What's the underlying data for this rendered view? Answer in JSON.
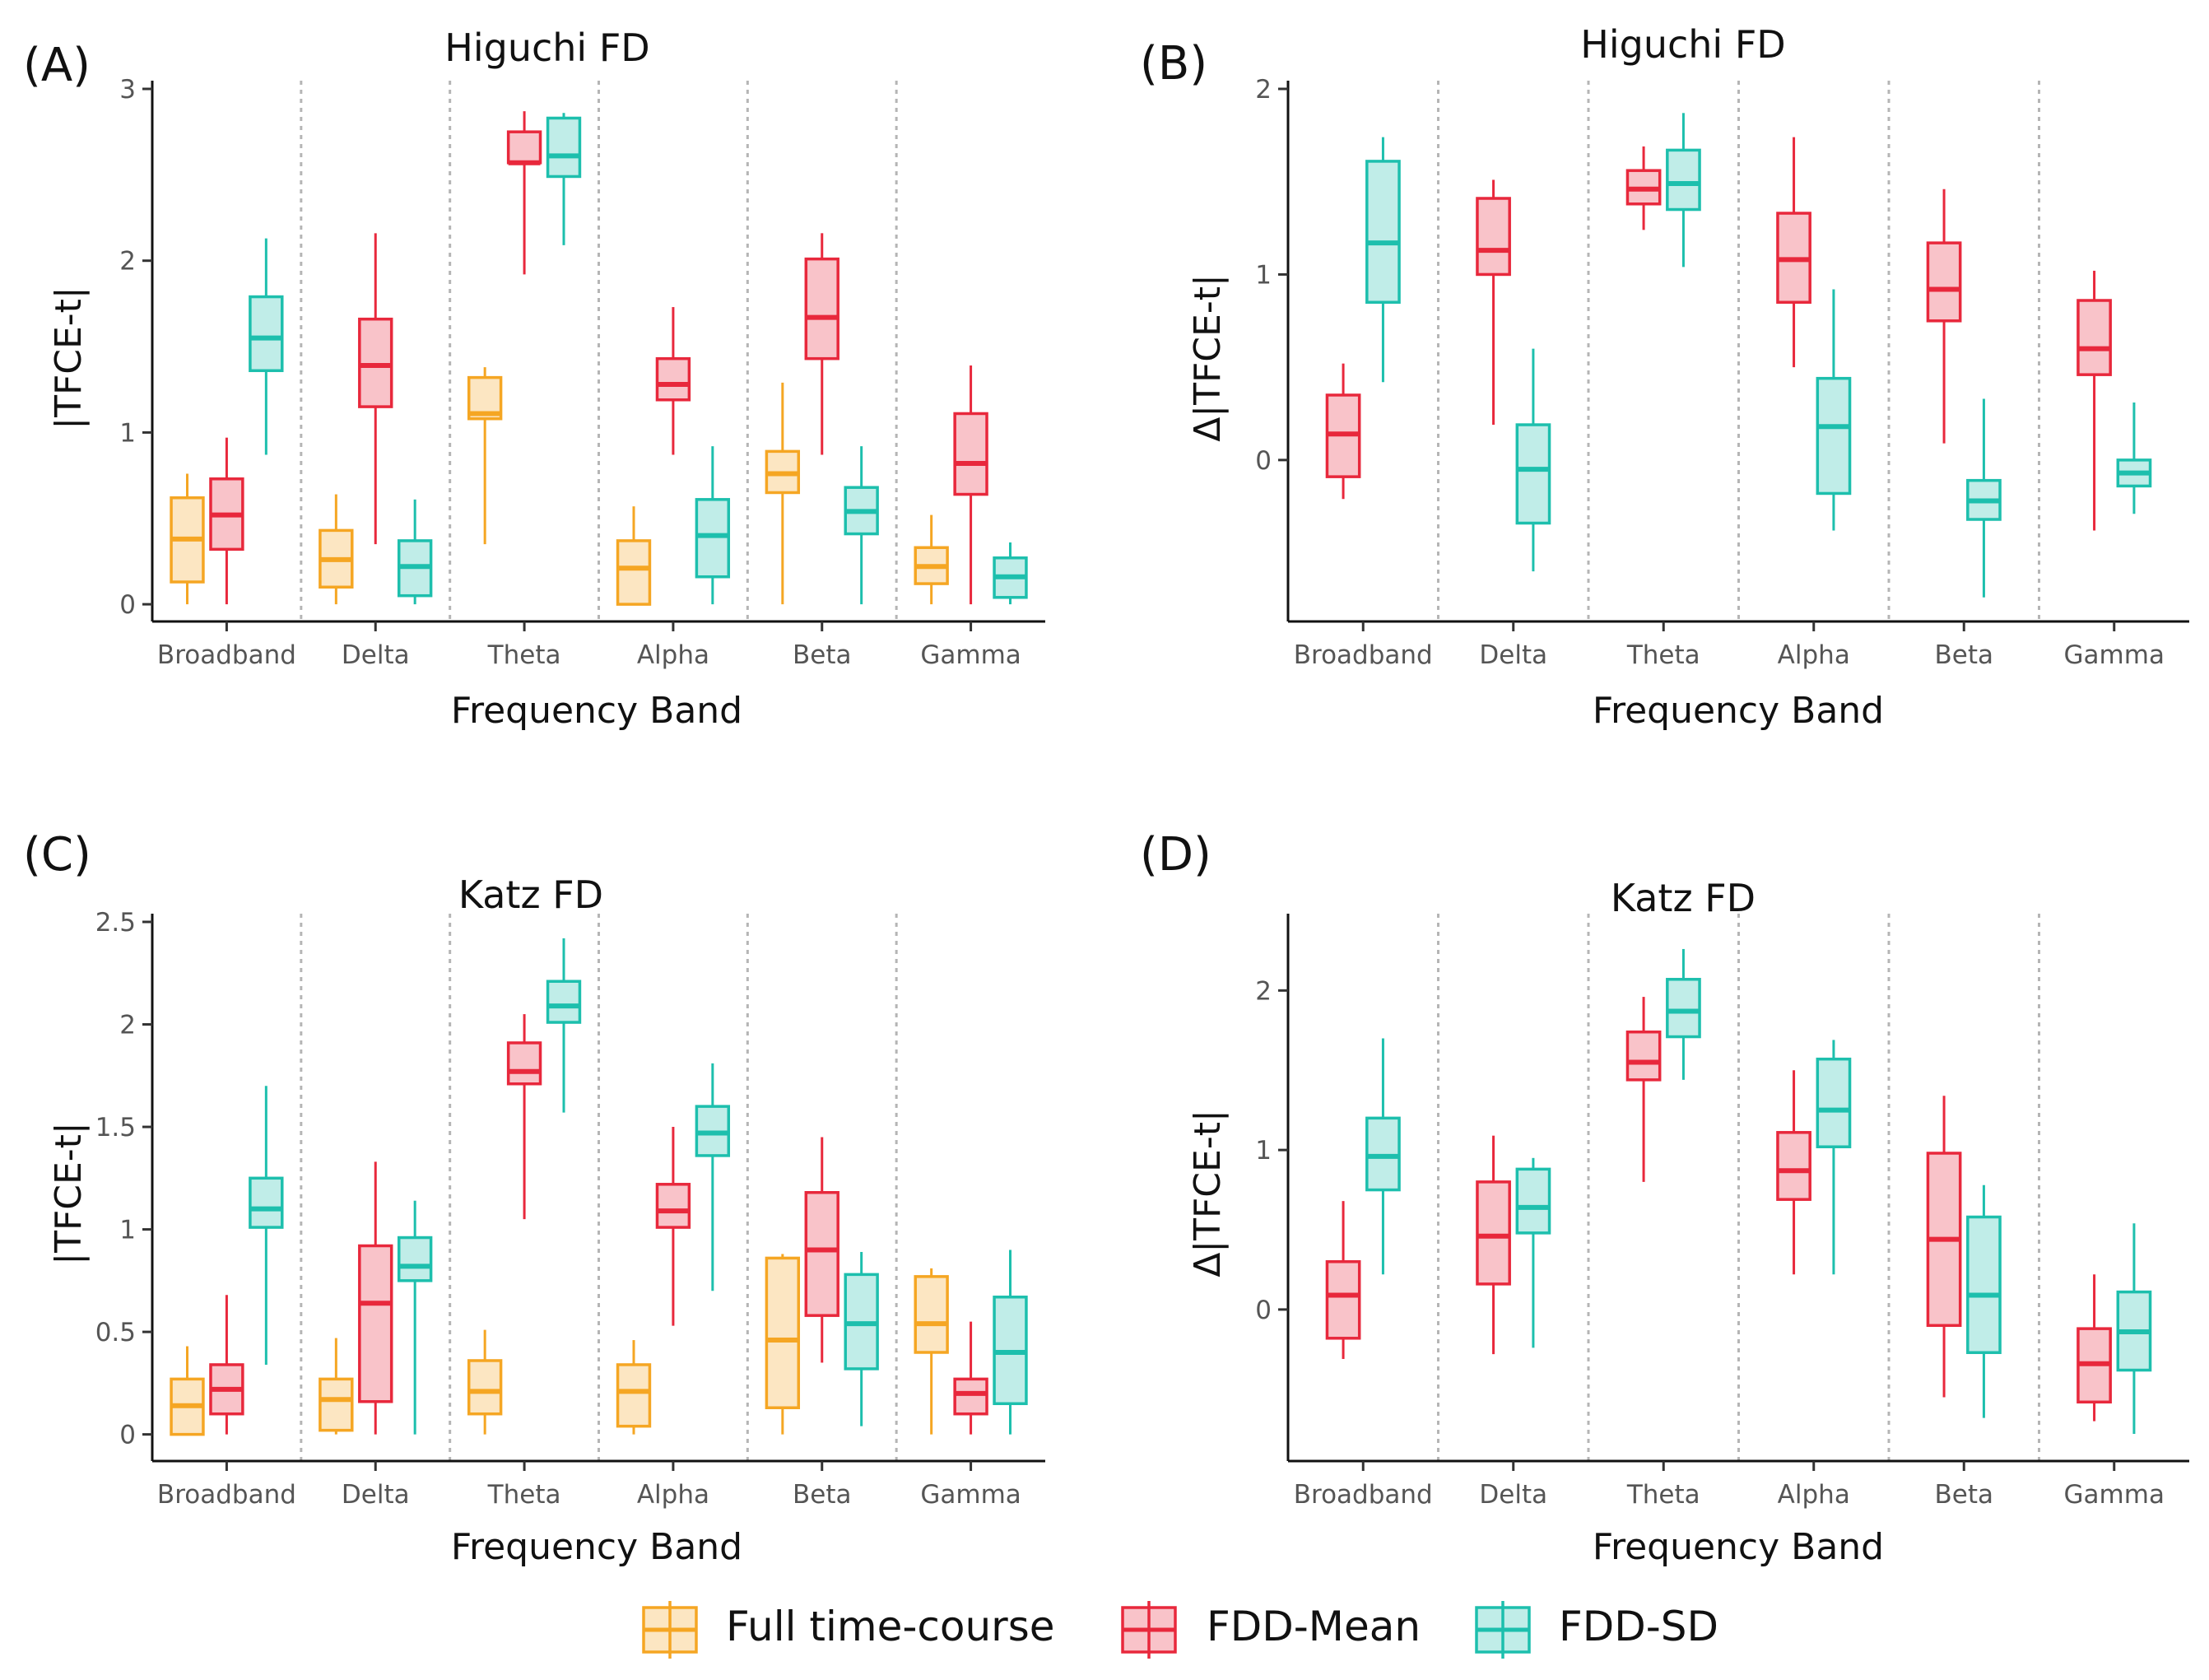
{
  "colors": {
    "full": "#F5A623",
    "mean": "#E8283C",
    "sd": "#1DBFAD"
  },
  "legend": [
    {
      "key": "full",
      "label": "Full time-course"
    },
    {
      "key": "mean",
      "label": "FDD-Mean"
    },
    {
      "key": "sd",
      "label": "FDD-SD"
    }
  ],
  "chart_data": [
    {
      "panel": "(A)",
      "type": "box",
      "title": "Higuchi FD",
      "xlabel": "Frequency Band",
      "ylabel": "|TFCE-t|",
      "ylim": [
        -0.1,
        3.0
      ],
      "yticks": [
        0,
        1,
        2,
        3
      ],
      "ytick_labels": [
        "0",
        "1",
        "2",
        "3"
      ],
      "categories": [
        "Broadband",
        "Delta",
        "Theta",
        "Alpha",
        "Beta",
        "Gamma"
      ],
      "series": [
        {
          "key": "full",
          "name": "Full time-course",
          "boxes": [
            {
              "category": "Broadband",
              "min": 0.0,
              "q1": 0.13,
              "median": 0.38,
              "q3": 0.62,
              "max": 0.76
            },
            {
              "category": "Delta",
              "min": 0.0,
              "q1": 0.1,
              "median": 0.26,
              "q3": 0.43,
              "max": 0.64
            },
            {
              "category": "Theta",
              "min": 0.35,
              "q1": 1.08,
              "median": 1.11,
              "q3": 1.32,
              "max": 1.38
            },
            {
              "category": "Alpha",
              "min": 0.0,
              "q1": 0.0,
              "median": 0.21,
              "q3": 0.37,
              "max": 0.57
            },
            {
              "category": "Beta",
              "min": 0.0,
              "q1": 0.65,
              "median": 0.76,
              "q3": 0.89,
              "max": 1.29
            },
            {
              "category": "Gamma",
              "min": 0.0,
              "q1": 0.12,
              "median": 0.22,
              "q3": 0.33,
              "max": 0.52
            }
          ]
        },
        {
          "key": "mean",
          "name": "FDD-Mean",
          "boxes": [
            {
              "category": "Broadband",
              "min": 0.0,
              "q1": 0.32,
              "median": 0.52,
              "q3": 0.73,
              "max": 0.97
            },
            {
              "category": "Delta",
              "min": 0.35,
              "q1": 1.15,
              "median": 1.39,
              "q3": 1.66,
              "max": 2.16
            },
            {
              "category": "Theta",
              "min": 1.92,
              "q1": 2.57,
              "median": 2.57,
              "q3": 2.75,
              "max": 2.87
            },
            {
              "category": "Alpha",
              "min": 0.87,
              "q1": 1.19,
              "median": 1.28,
              "q3": 1.43,
              "max": 1.73
            },
            {
              "category": "Beta",
              "min": 0.87,
              "q1": 1.43,
              "median": 1.67,
              "q3": 2.01,
              "max": 2.16
            },
            {
              "category": "Gamma",
              "min": 0.0,
              "q1": 0.64,
              "median": 0.82,
              "q3": 1.11,
              "max": 1.39
            }
          ]
        },
        {
          "key": "sd",
          "name": "FDD-SD",
          "boxes": [
            {
              "category": "Broadband",
              "min": 0.87,
              "q1": 1.36,
              "median": 1.55,
              "q3": 1.79,
              "max": 2.13
            },
            {
              "category": "Delta",
              "min": 0.0,
              "q1": 0.05,
              "median": 0.22,
              "q3": 0.37,
              "max": 0.61
            },
            {
              "category": "Theta",
              "min": 2.09,
              "q1": 2.49,
              "median": 2.61,
              "q3": 2.83,
              "max": 2.86
            },
            {
              "category": "Alpha",
              "min": 0.0,
              "q1": 0.16,
              "median": 0.4,
              "q3": 0.61,
              "max": 0.92
            },
            {
              "category": "Beta",
              "min": 0.0,
              "q1": 0.41,
              "median": 0.54,
              "q3": 0.68,
              "max": 0.92
            },
            {
              "category": "Gamma",
              "min": 0.0,
              "q1": 0.04,
              "median": 0.16,
              "q3": 0.27,
              "max": 0.36
            }
          ]
        }
      ]
    },
    {
      "panel": "(B)",
      "type": "box",
      "title": "Higuchi FD",
      "xlabel": "Frequency Band",
      "ylabel": "Δ|TFCE-t|",
      "ylim": [
        -0.87,
        2.0
      ],
      "yticks": [
        0,
        1,
        2
      ],
      "ytick_labels": [
        "0",
        "1",
        "2"
      ],
      "categories": [
        "Broadband",
        "Delta",
        "Theta",
        "Alpha",
        "Beta",
        "Gamma"
      ],
      "series": [
        {
          "key": "mean",
          "name": "FDD-Mean",
          "boxes": [
            {
              "category": "Broadband",
              "min": -0.21,
              "q1": -0.09,
              "median": 0.14,
              "q3": 0.35,
              "max": 0.52
            },
            {
              "category": "Delta",
              "min": 0.19,
              "q1": 1.0,
              "median": 1.13,
              "q3": 1.41,
              "max": 1.51
            },
            {
              "category": "Theta",
              "min": 1.24,
              "q1": 1.38,
              "median": 1.46,
              "q3": 1.56,
              "max": 1.69
            },
            {
              "category": "Alpha",
              "min": 0.5,
              "q1": 0.85,
              "median": 1.08,
              "q3": 1.33,
              "max": 1.74
            },
            {
              "category": "Beta",
              "min": 0.09,
              "q1": 0.75,
              "median": 0.92,
              "q3": 1.17,
              "max": 1.46
            },
            {
              "category": "Gamma",
              "min": -0.38,
              "q1": 0.46,
              "median": 0.6,
              "q3": 0.86,
              "max": 1.02
            }
          ]
        },
        {
          "key": "sd",
          "name": "FDD-SD",
          "boxes": [
            {
              "category": "Broadband",
              "min": 0.42,
              "q1": 0.85,
              "median": 1.17,
              "q3": 1.61,
              "max": 1.74
            },
            {
              "category": "Delta",
              "min": -0.6,
              "q1": -0.34,
              "median": -0.05,
              "q3": 0.19,
              "max": 0.6
            },
            {
              "category": "Theta",
              "min": 1.04,
              "q1": 1.35,
              "median": 1.49,
              "q3": 1.67,
              "max": 1.87
            },
            {
              "category": "Alpha",
              "min": -0.38,
              "q1": -0.18,
              "median": 0.18,
              "q3": 0.44,
              "max": 0.92
            },
            {
              "category": "Beta",
              "min": -0.74,
              "q1": -0.32,
              "median": -0.22,
              "q3": -0.11,
              "max": 0.33
            },
            {
              "category": "Gamma",
              "min": -0.29,
              "q1": -0.14,
              "median": -0.07,
              "q3": 0.0,
              "max": 0.31
            }
          ]
        }
      ]
    },
    {
      "panel": "(C)",
      "type": "box",
      "title": "Katz FD",
      "xlabel": "Frequency Band",
      "ylabel": "|TFCE-t|",
      "ylim": [
        -0.13,
        2.5
      ],
      "yticks": [
        0,
        0.5,
        1,
        1.5,
        2,
        2.5
      ],
      "ytick_labels": [
        "0",
        "0.5",
        "1",
        "1.5",
        "2",
        "2.5"
      ],
      "categories": [
        "Broadband",
        "Delta",
        "Theta",
        "Alpha",
        "Beta",
        "Gamma"
      ],
      "series": [
        {
          "key": "full",
          "name": "Full time-course",
          "boxes": [
            {
              "category": "Broadband",
              "min": 0.0,
              "q1": 0.0,
              "median": 0.14,
              "q3": 0.27,
              "max": 0.43
            },
            {
              "category": "Delta",
              "min": 0.0,
              "q1": 0.02,
              "median": 0.17,
              "q3": 0.27,
              "max": 0.47
            },
            {
              "category": "Theta",
              "min": 0.0,
              "q1": 0.1,
              "median": 0.21,
              "q3": 0.36,
              "max": 0.51
            },
            {
              "category": "Alpha",
              "min": 0.0,
              "q1": 0.04,
              "median": 0.21,
              "q3": 0.34,
              "max": 0.46
            },
            {
              "category": "Beta",
              "min": 0.0,
              "q1": 0.13,
              "median": 0.46,
              "q3": 0.86,
              "max": 0.88
            },
            {
              "category": "Gamma",
              "min": 0.0,
              "q1": 0.4,
              "median": 0.54,
              "q3": 0.77,
              "max": 0.81
            }
          ]
        },
        {
          "key": "mean",
          "name": "FDD-Mean",
          "boxes": [
            {
              "category": "Broadband",
              "min": 0.0,
              "q1": 0.1,
              "median": 0.22,
              "q3": 0.34,
              "max": 0.68
            },
            {
              "category": "Delta",
              "min": 0.0,
              "q1": 0.16,
              "median": 0.64,
              "q3": 0.92,
              "max": 1.33
            },
            {
              "category": "Theta",
              "min": 1.05,
              "q1": 1.71,
              "median": 1.77,
              "q3": 1.91,
              "max": 2.05
            },
            {
              "category": "Alpha",
              "min": 0.53,
              "q1": 1.01,
              "median": 1.09,
              "q3": 1.22,
              "max": 1.5
            },
            {
              "category": "Beta",
              "min": 0.35,
              "q1": 0.58,
              "median": 0.9,
              "q3": 1.18,
              "max": 1.45
            },
            {
              "category": "Gamma",
              "min": 0.0,
              "q1": 0.1,
              "median": 0.2,
              "q3": 0.27,
              "max": 0.55
            }
          ]
        },
        {
          "key": "sd",
          "name": "FDD-SD",
          "boxes": [
            {
              "category": "Broadband",
              "min": 0.34,
              "q1": 1.01,
              "median": 1.1,
              "q3": 1.25,
              "max": 1.7
            },
            {
              "category": "Delta",
              "min": 0.0,
              "q1": 0.75,
              "median": 0.82,
              "q3": 0.96,
              "max": 1.14
            },
            {
              "category": "Theta",
              "min": 1.57,
              "q1": 2.01,
              "median": 2.09,
              "q3": 2.21,
              "max": 2.42
            },
            {
              "category": "Alpha",
              "min": 0.7,
              "q1": 1.36,
              "median": 1.47,
              "q3": 1.6,
              "max": 1.81
            },
            {
              "category": "Beta",
              "min": 0.04,
              "q1": 0.32,
              "median": 0.54,
              "q3": 0.78,
              "max": 0.89
            },
            {
              "category": "Gamma",
              "min": 0.0,
              "q1": 0.15,
              "median": 0.4,
              "q3": 0.67,
              "max": 0.9
            }
          ]
        }
      ]
    },
    {
      "panel": "(D)",
      "type": "box",
      "title": "Katz FD",
      "xlabel": "Frequency Band",
      "ylabel": "Δ|TFCE-t|",
      "ylim": [
        -0.95,
        2.43
      ],
      "yticks": [
        0,
        1,
        2
      ],
      "ytick_labels": [
        "0",
        "1",
        "2"
      ],
      "categories": [
        "Broadband",
        "Delta",
        "Theta",
        "Alpha",
        "Beta",
        "Gamma"
      ],
      "series": [
        {
          "key": "mean",
          "name": "FDD-Mean",
          "boxes": [
            {
              "category": "Broadband",
              "min": -0.31,
              "q1": -0.18,
              "median": 0.09,
              "q3": 0.3,
              "max": 0.68
            },
            {
              "category": "Delta",
              "min": -0.28,
              "q1": 0.16,
              "median": 0.46,
              "q3": 0.8,
              "max": 1.09
            },
            {
              "category": "Theta",
              "min": 0.8,
              "q1": 1.44,
              "median": 1.55,
              "q3": 1.74,
              "max": 1.96
            },
            {
              "category": "Alpha",
              "min": 0.22,
              "q1": 0.69,
              "median": 0.87,
              "q3": 1.11,
              "max": 1.5
            },
            {
              "category": "Beta",
              "min": -0.55,
              "q1": -0.1,
              "median": 0.44,
              "q3": 0.98,
              "max": 1.34
            },
            {
              "category": "Gamma",
              "min": -0.7,
              "q1": -0.58,
              "median": -0.34,
              "q3": -0.12,
              "max": 0.22
            }
          ]
        },
        {
          "key": "sd",
          "name": "FDD-SD",
          "boxes": [
            {
              "category": "Broadband",
              "min": 0.22,
              "q1": 0.75,
              "median": 0.96,
              "q3": 1.2,
              "max": 1.7
            },
            {
              "category": "Delta",
              "min": -0.24,
              "q1": 0.48,
              "median": 0.64,
              "q3": 0.88,
              "max": 0.95
            },
            {
              "category": "Theta",
              "min": 1.44,
              "q1": 1.71,
              "median": 1.87,
              "q3": 2.07,
              "max": 2.26
            },
            {
              "category": "Alpha",
              "min": 0.22,
              "q1": 1.02,
              "median": 1.25,
              "q3": 1.57,
              "max": 1.69
            },
            {
              "category": "Beta",
              "min": -0.68,
              "q1": -0.27,
              "median": 0.09,
              "q3": 0.58,
              "max": 0.78
            },
            {
              "category": "Gamma",
              "min": -0.78,
              "q1": -0.38,
              "median": -0.14,
              "q3": 0.11,
              "max": 0.54
            }
          ]
        }
      ]
    }
  ]
}
